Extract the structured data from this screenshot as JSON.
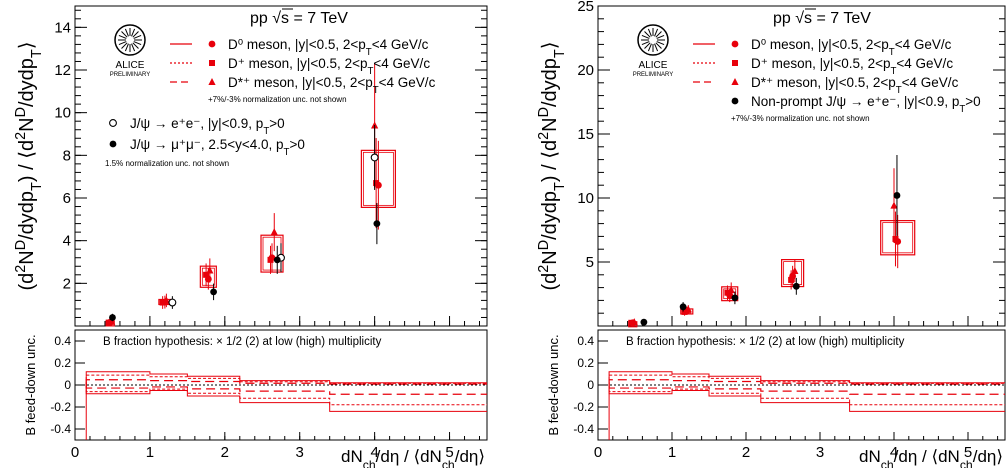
{
  "chart_data": [
    {
      "type": "scatter",
      "panel": "left",
      "title": "pp √s = 7 TeV",
      "logo": {
        "name": "ALICE",
        "sub": "PRELIMINARY"
      },
      "xlabel": "dN_ch/dη / ⟨dN_ch/dη⟩",
      "ylabel": "(d²N^D/dydp_T) / ⟨d²N^D/dydp_T⟩",
      "xlim": [
        0,
        5.5
      ],
      "ylim": [
        0,
        15
      ],
      "yticks": [
        2,
        4,
        6,
        8,
        10,
        12,
        14
      ],
      "xticks": [
        0,
        1,
        2,
        3,
        4,
        5
      ],
      "legend_position": "top",
      "legend_d": [
        {
          "label": "D⁰ meson, |y|<0.5, 2<p_T<4 GeV/c",
          "marker": "circle",
          "line": "solid"
        },
        {
          "label": "D⁺ meson, |y|<0.5, 2<p_T<4 GeV/c",
          "marker": "square",
          "line": "dotted"
        },
        {
          "label": "D*⁺ meson, |y|<0.5, 2<p_T<4 GeV/c",
          "marker": "triangle",
          "line": "dashed"
        }
      ],
      "note_d": "+7%/-3% normalization unc. not shown",
      "legend_jpsi": [
        {
          "label": "J/ψ → e⁺e⁻, |y|<0.9, p_T>0",
          "marker": "open-circle"
        },
        {
          "label": "J/ψ → μ⁺μ⁻, 2.5<y<4.0, p_T>0",
          "marker": "filled-circle"
        }
      ],
      "note_jpsi": "1.5% normalization unc. not shown",
      "series": [
        {
          "name": "D⁰ meson",
          "color": "#e8000b",
          "marker": "circle",
          "points": [
            [
              0.47,
              0.18
            ],
            [
              1.2,
              1.12
            ],
            [
              1.78,
              2.2
            ],
            [
              2.63,
              3.2
            ],
            [
              4.05,
              6.6
            ]
          ]
        },
        {
          "name": "D⁺ meson",
          "color": "#e8000b",
          "marker": "square",
          "points": [
            [
              0.45,
              0.16
            ],
            [
              1.17,
              1.1
            ],
            [
              1.75,
              2.4
            ],
            [
              2.61,
              3.1
            ],
            [
              4.02,
              6.7
            ]
          ]
        },
        {
          "name": "D*⁺ meson",
          "color": "#e8000b",
          "marker": "triangle",
          "points": [
            [
              0.49,
              0.2
            ],
            [
              1.22,
              1.2
            ],
            [
              1.8,
              2.6
            ],
            [
              2.66,
              4.4
            ],
            [
              4.0,
              9.4
            ]
          ]
        },
        {
          "name": "J/ψ → e⁺e⁻",
          "color": "#000000",
          "marker": "open-circle",
          "points": [
            [
              1.3,
              1.1
            ],
            [
              2.75,
              3.2
            ],
            [
              4.0,
              7.9
            ]
          ]
        },
        {
          "name": "J/ψ → μ⁺μ⁻",
          "color": "#000000",
          "marker": "filled-circle",
          "points": [
            [
              0.5,
              0.4
            ],
            [
              1.85,
              1.6
            ],
            [
              2.7,
              3.1
            ],
            [
              4.03,
              4.8
            ]
          ]
        }
      ],
      "bottom_panel": {
        "ylabel": "B feed-down unc.",
        "ylim": [
          -0.5,
          0.5
        ],
        "yticks": [
          -0.4,
          -0.2,
          0,
          0.2,
          0.4
        ],
        "caption": "B fraction hypothesis: × 1/2 (2) at low (high) multiplicity",
        "bins": [
          0.15,
          1.0,
          1.5,
          2.2,
          3.4,
          5.5
        ],
        "upper": [
          0.12,
          0.1,
          0.08,
          0.04,
          0.02
        ],
        "lower": [
          -0.08,
          -0.05,
          -0.1,
          -0.16,
          -0.24
        ]
      }
    },
    {
      "type": "scatter",
      "panel": "right",
      "title": "pp √s = 7 TeV",
      "logo": {
        "name": "ALICE",
        "sub": "PRELIMINARY"
      },
      "xlabel": "dN_ch/dη / ⟨dN_ch/dη⟩",
      "ylabel": "(d²N^D/dydp_T) / ⟨d²N^D/dydp_T⟩",
      "xlim": [
        0,
        5.5
      ],
      "ylim": [
        0,
        25
      ],
      "yticks": [
        5,
        10,
        15,
        20,
        25
      ],
      "xticks": [
        0,
        1,
        2,
        3,
        4,
        5
      ],
      "legend_position": "top",
      "legend_d": [
        {
          "label": "D⁰ meson, |y|<0.5, 2<p_T<4 GeV/c",
          "marker": "circle",
          "line": "solid"
        },
        {
          "label": "D⁺ meson, |y|<0.5, 2<p_T<4 GeV/c",
          "marker": "square",
          "line": "dotted"
        },
        {
          "label": "D*⁺ meson, |y|<0.5, 2<p_T<4 GeV/c",
          "marker": "triangle",
          "line": "dashed"
        },
        {
          "label": "Non-prompt J/ψ → e⁺e⁻, |y|<0.9, p_T>0",
          "marker": "filled-circle",
          "line": "none"
        }
      ],
      "note_d": "+7%/-3% normalization unc. not shown",
      "series": [
        {
          "name": "D⁰ meson",
          "color": "#e8000b",
          "marker": "circle",
          "points": [
            [
              0.47,
              0.25
            ],
            [
              1.2,
              1.2
            ],
            [
              1.78,
              2.4
            ],
            [
              2.63,
              3.9
            ],
            [
              4.05,
              6.6
            ]
          ]
        },
        {
          "name": "D⁺ meson",
          "color": "#e8000b",
          "marker": "square",
          "points": [
            [
              0.45,
              0.25
            ],
            [
              1.17,
              1.1
            ],
            [
              1.75,
              2.6
            ],
            [
              2.61,
              3.6
            ],
            [
              4.02,
              6.8
            ]
          ]
        },
        {
          "name": "D*⁺ meson",
          "color": "#e8000b",
          "marker": "triangle",
          "points": [
            [
              0.49,
              0.3
            ],
            [
              1.22,
              1.3
            ],
            [
              1.8,
              2.8
            ],
            [
              2.66,
              4.3
            ],
            [
              4.0,
              9.4
            ]
          ]
        },
        {
          "name": "Non-prompt J/ψ → e⁺e⁻",
          "color": "#000000",
          "marker": "filled-circle",
          "points": [
            [
              0.62,
              0.3
            ],
            [
              1.15,
              1.5
            ],
            [
              1.85,
              2.2
            ],
            [
              2.68,
              3.1
            ],
            [
              4.04,
              10.2
            ]
          ]
        }
      ],
      "bottom_panel": {
        "ylabel": "B feed-down unc.",
        "ylim": [
          -0.5,
          0.5
        ],
        "yticks": [
          -0.4,
          -0.2,
          0,
          0.2,
          0.4
        ],
        "caption": "B fraction hypothesis: × 1/2 (2) at low (high) multiplicity",
        "bins": [
          0.15,
          1.0,
          1.5,
          2.2,
          3.4,
          5.5
        ],
        "upper": [
          0.12,
          0.1,
          0.08,
          0.04,
          0.02
        ],
        "lower": [
          -0.08,
          -0.05,
          -0.1,
          -0.16,
          -0.24
        ]
      }
    }
  ]
}
